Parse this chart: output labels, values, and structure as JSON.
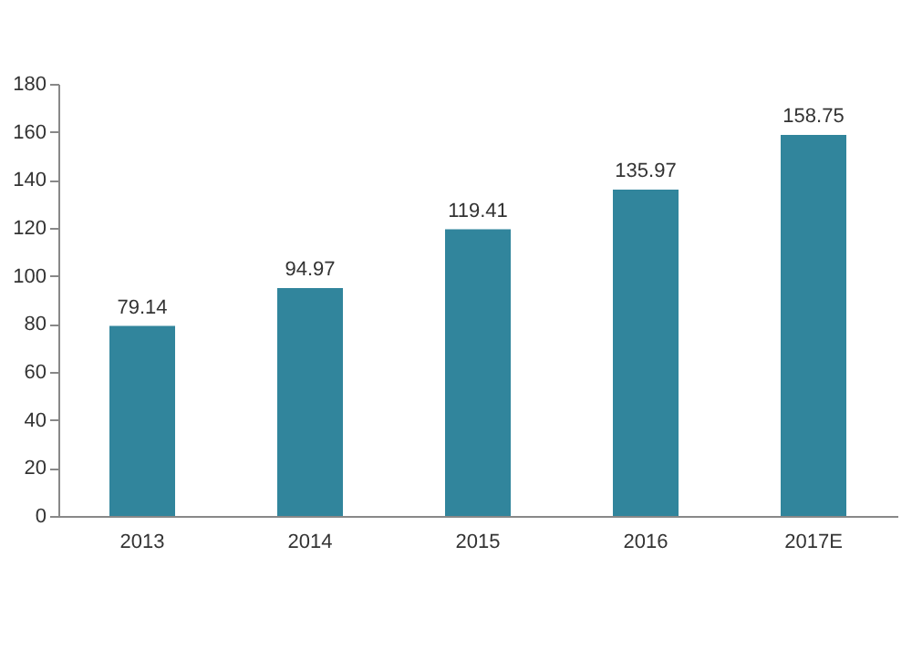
{
  "chart_data": {
    "type": "bar",
    "categories": [
      "2013",
      "2014",
      "2015",
      "2016",
      "2017E"
    ],
    "values": [
      79.14,
      94.97,
      119.41,
      135.97,
      158.75
    ],
    "color": "#31859c",
    "ylim": [
      0,
      180
    ],
    "yticks": [
      0,
      20,
      40,
      60,
      80,
      100,
      120,
      140,
      160,
      180
    ],
    "grid": false,
    "data_labels": true
  }
}
